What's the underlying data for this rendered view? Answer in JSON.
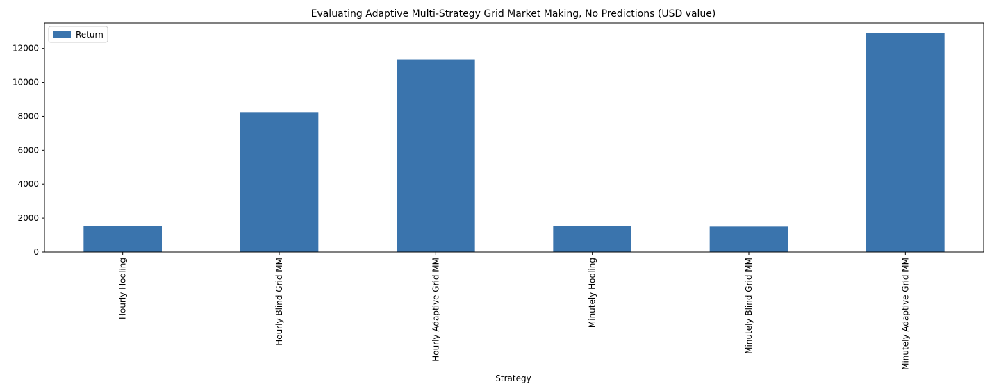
{
  "chart_data": {
    "type": "bar",
    "title": "Evaluating Adaptive Multi-Strategy Grid Market Making, No Predictions (USD value)",
    "xlabel": "Strategy",
    "ylabel": "",
    "categories": [
      "Hourly Hodling",
      "Hourly Blind Grid MM",
      "Hourly Adaptive Grid MM",
      "Minutely Hodling",
      "Minutely Blind Grid MM",
      "Minutely Adaptive Grid MM"
    ],
    "series": [
      {
        "name": "Return",
        "values": [
          1550,
          8250,
          11350,
          1550,
          1500,
          12900
        ],
        "color": "#3a74ad"
      }
    ],
    "yticks": [
      0,
      2000,
      4000,
      6000,
      8000,
      10000,
      12000
    ],
    "ylim": [
      0,
      13500
    ],
    "legend": {
      "position": "top-left"
    },
    "grid": false
  }
}
